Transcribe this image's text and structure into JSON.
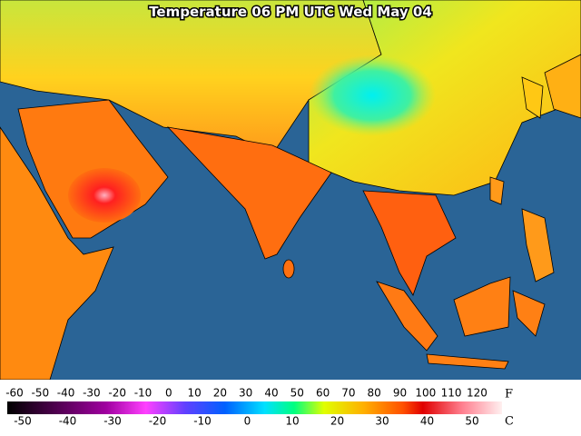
{
  "title": "Temperature 06 PM UTC Wed May 04",
  "legend": {
    "fahrenheit": {
      "unit": "F",
      "ticks": [
        -60,
        -50,
        -40,
        -30,
        -20,
        -10,
        0,
        10,
        20,
        30,
        40,
        50,
        60,
        70,
        80,
        90,
        100,
        110,
        120
      ]
    },
    "celsius": {
      "unit": "C",
      "ticks": [
        -50,
        -40,
        -30,
        -20,
        -10,
        0,
        10,
        20,
        30,
        40,
        50
      ]
    }
  }
}
